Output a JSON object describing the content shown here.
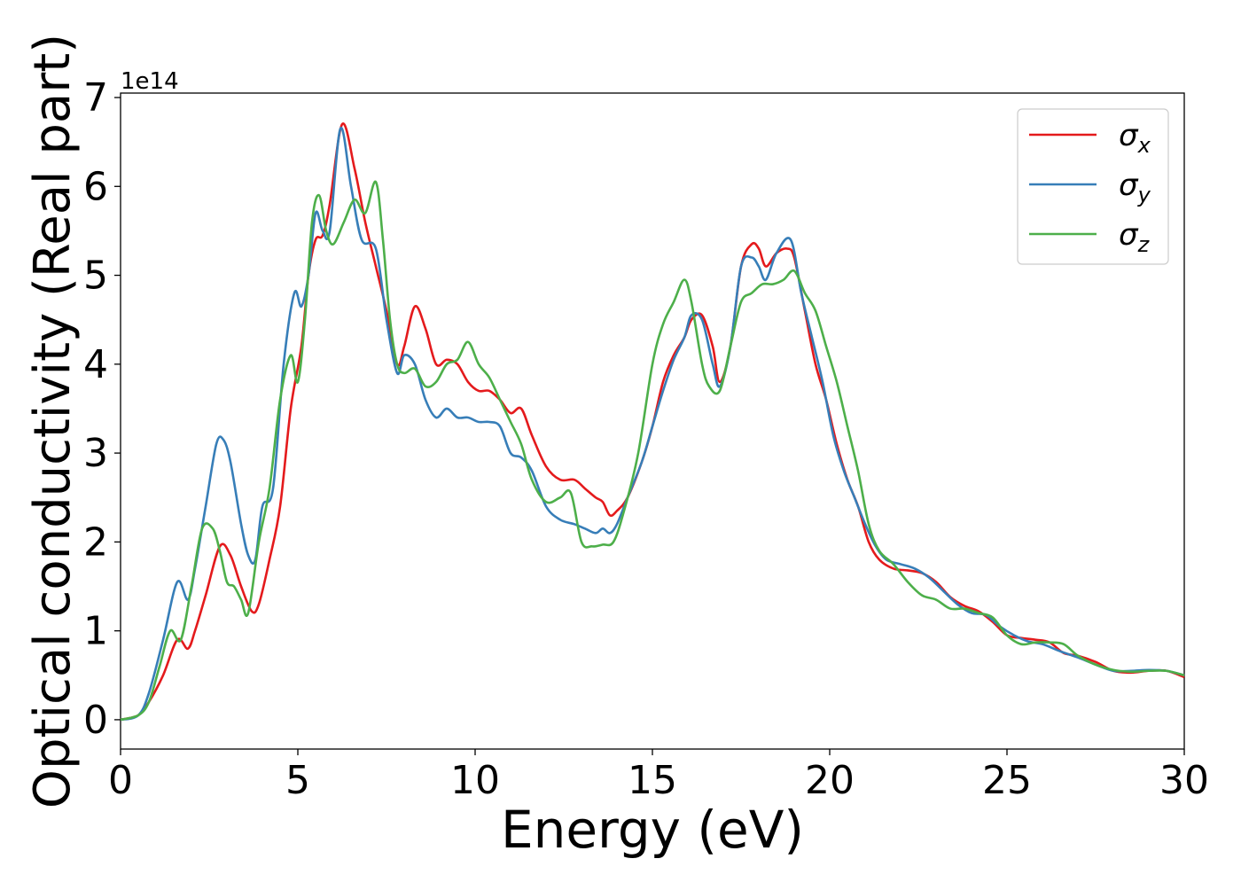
{
  "chart_data": {
    "type": "line",
    "xlabel": "Energy (eV)",
    "ylabel": "Optical conductivity (Real part)",
    "y_offset_label": "1e14",
    "y_scale_factor": 100000000000000.0,
    "xlim": [
      0,
      30
    ],
    "ylim": [
      -0.33,
      7.05
    ],
    "x_ticks": [
      0,
      5,
      10,
      15,
      20,
      25,
      30
    ],
    "x_tick_labels": [
      "0",
      "5",
      "10",
      "15",
      "20",
      "25",
      "30"
    ],
    "y_ticks": [
      0,
      1,
      2,
      3,
      4,
      5,
      6,
      7
    ],
    "y_tick_labels": [
      "0",
      "1",
      "2",
      "3",
      "4",
      "5",
      "6",
      "7"
    ],
    "grid": false,
    "legend_position": "top-right",
    "legend": [
      {
        "symbol": "σ",
        "subscript": "x",
        "color": "#e41a1c"
      },
      {
        "symbol": "σ",
        "subscript": "y",
        "color": "#377eb8"
      },
      {
        "symbol": "σ",
        "subscript": "z",
        "color": "#4daf4a"
      }
    ],
    "series": [
      {
        "color": "#e41a1c",
        "x": [
          0,
          0.5,
          0.8,
          1.2,
          1.6,
          1.9,
          2.1,
          2.4,
          2.8,
          3.1,
          3.4,
          3.7,
          3.9,
          4.2,
          4.5,
          4.8,
          5.1,
          5.3,
          5.5,
          5.7,
          5.9,
          6.25,
          6.6,
          6.9,
          7.2,
          7.5,
          7.8,
          8.0,
          8.3,
          8.6,
          8.9,
          9.2,
          9.5,
          9.8,
          10.1,
          10.4,
          10.7,
          11.0,
          11.3,
          11.6,
          12.0,
          12.4,
          12.8,
          13.1,
          13.4,
          13.6,
          13.8,
          14.0,
          14.3,
          14.7,
          15.0,
          15.3,
          15.6,
          15.9,
          16.1,
          16.4,
          16.7,
          16.9,
          17.2,
          17.5,
          17.8,
          18.0,
          18.2,
          18.5,
          18.8,
          19.0,
          19.3,
          19.6,
          19.9,
          20.2,
          20.5,
          20.8,
          21.1,
          21.4,
          21.8,
          22.2,
          22.6,
          23.0,
          23.4,
          23.8,
          24.2,
          24.6,
          25.0,
          25.4,
          25.8,
          26.2,
          26.6,
          27.0,
          27.5,
          28.0,
          28.5,
          29.0,
          29.5,
          30.0
        ],
        "y": [
          0,
          0.05,
          0.2,
          0.5,
          0.9,
          0.8,
          1.0,
          1.4,
          1.95,
          1.85,
          1.5,
          1.22,
          1.3,
          1.8,
          2.4,
          3.5,
          4.2,
          5.0,
          5.4,
          5.45,
          5.8,
          6.7,
          6.2,
          5.6,
          5.1,
          4.6,
          4.0,
          4.2,
          4.65,
          4.4,
          4.0,
          4.05,
          4.0,
          3.8,
          3.7,
          3.7,
          3.6,
          3.45,
          3.5,
          3.2,
          2.85,
          2.7,
          2.7,
          2.6,
          2.5,
          2.45,
          2.3,
          2.35,
          2.5,
          2.9,
          3.3,
          3.8,
          4.1,
          4.3,
          4.5,
          4.55,
          4.2,
          3.8,
          4.2,
          5.1,
          5.35,
          5.3,
          5.1,
          5.25,
          5.3,
          5.2,
          4.6,
          4.0,
          3.6,
          3.1,
          2.7,
          2.4,
          2.0,
          1.8,
          1.7,
          1.68,
          1.65,
          1.55,
          1.38,
          1.28,
          1.22,
          1.1,
          0.95,
          0.92,
          0.9,
          0.87,
          0.75,
          0.72,
          0.65,
          0.55,
          0.53,
          0.55,
          0.55,
          0.48
        ]
      },
      {
        "color": "#377eb8",
        "x": [
          0,
          0.5,
          0.8,
          1.2,
          1.6,
          1.9,
          2.1,
          2.4,
          2.7,
          2.9,
          3.1,
          3.4,
          3.6,
          3.8,
          4.0,
          4.3,
          4.6,
          4.9,
          5.1,
          5.3,
          5.5,
          5.7,
          5.9,
          6.2,
          6.5,
          6.8,
          7.2,
          7.5,
          7.8,
          8.0,
          8.3,
          8.6,
          8.9,
          9.2,
          9.5,
          9.8,
          10.1,
          10.4,
          10.7,
          11.0,
          11.3,
          11.6,
          12.0,
          12.4,
          12.8,
          13.1,
          13.4,
          13.6,
          13.8,
          14.0,
          14.3,
          14.7,
          15.0,
          15.3,
          15.6,
          15.9,
          16.1,
          16.4,
          16.7,
          16.9,
          17.2,
          17.5,
          17.8,
          18.0,
          18.2,
          18.5,
          18.9,
          19.2,
          19.5,
          19.8,
          20.1,
          20.4,
          20.7,
          21.0,
          21.3,
          21.6,
          22.0,
          22.4,
          22.8,
          23.2,
          23.6,
          24.0,
          24.4,
          24.8,
          25.2,
          25.6,
          26.0,
          26.5,
          27.0,
          27.5,
          28.0,
          28.5,
          29.0,
          29.5,
          30.0
        ],
        "y": [
          0,
          0.05,
          0.3,
          0.9,
          1.55,
          1.35,
          1.7,
          2.4,
          3.1,
          3.15,
          2.9,
          2.2,
          1.85,
          1.8,
          2.4,
          2.6,
          4.0,
          4.8,
          4.65,
          5.0,
          5.7,
          5.5,
          5.5,
          6.65,
          6.0,
          5.4,
          5.3,
          4.5,
          3.9,
          4.1,
          4.0,
          3.6,
          3.4,
          3.5,
          3.4,
          3.4,
          3.35,
          3.35,
          3.3,
          3.0,
          2.95,
          2.8,
          2.4,
          2.25,
          2.2,
          2.15,
          2.1,
          2.15,
          2.1,
          2.2,
          2.5,
          2.9,
          3.3,
          3.7,
          4.05,
          4.3,
          4.55,
          4.5,
          4.0,
          3.75,
          4.2,
          5.1,
          5.2,
          5.1,
          4.95,
          5.25,
          5.4,
          4.8,
          4.3,
          3.8,
          3.2,
          2.8,
          2.5,
          2.2,
          1.95,
          1.8,
          1.75,
          1.7,
          1.6,
          1.45,
          1.3,
          1.2,
          1.18,
          1.05,
          0.95,
          0.88,
          0.85,
          0.77,
          0.7,
          0.62,
          0.55,
          0.55,
          0.56,
          0.55,
          0.5
        ]
      },
      {
        "color": "#4daf4a",
        "x": [
          0,
          0.5,
          0.8,
          1.1,
          1.4,
          1.7,
          2.0,
          2.3,
          2.6,
          2.8,
          3.0,
          3.2,
          3.4,
          3.6,
          3.9,
          4.2,
          4.5,
          4.8,
          5.0,
          5.2,
          5.4,
          5.6,
          5.8,
          6.0,
          6.3,
          6.6,
          6.9,
          7.2,
          7.4,
          7.6,
          7.8,
          8.0,
          8.3,
          8.6,
          8.9,
          9.2,
          9.5,
          9.8,
          10.1,
          10.4,
          10.7,
          11.0,
          11.3,
          11.6,
          12.0,
          12.4,
          12.7,
          13.0,
          13.3,
          13.6,
          13.9,
          14.2,
          14.6,
          15.0,
          15.3,
          15.6,
          15.9,
          16.1,
          16.4,
          16.6,
          16.9,
          17.2,
          17.5,
          17.8,
          18.1,
          18.4,
          18.7,
          19.0,
          19.3,
          19.6,
          19.9,
          20.2,
          20.5,
          20.8,
          21.1,
          21.4,
          21.8,
          22.2,
          22.6,
          23.0,
          23.4,
          23.8,
          24.2,
          24.6,
          25.0,
          25.4,
          25.8,
          26.2,
          26.6,
          27.0,
          27.5,
          28.0,
          28.5,
          29.0,
          29.5,
          30.0
        ],
        "y": [
          0,
          0.05,
          0.2,
          0.6,
          1.0,
          0.9,
          1.5,
          2.15,
          2.15,
          1.9,
          1.55,
          1.5,
          1.35,
          1.2,
          2.0,
          2.6,
          3.6,
          4.1,
          3.8,
          4.5,
          5.6,
          5.9,
          5.5,
          5.35,
          5.6,
          5.85,
          5.7,
          6.05,
          5.4,
          4.5,
          4.0,
          3.9,
          3.95,
          3.75,
          3.8,
          4.0,
          4.05,
          4.25,
          4.0,
          3.85,
          3.6,
          3.35,
          3.1,
          2.7,
          2.45,
          2.5,
          2.55,
          2.0,
          1.95,
          1.97,
          2.0,
          2.35,
          3.0,
          4.0,
          4.45,
          4.7,
          4.95,
          4.7,
          4.0,
          3.75,
          3.7,
          4.2,
          4.7,
          4.8,
          4.9,
          4.9,
          4.95,
          5.05,
          4.8,
          4.6,
          4.2,
          3.8,
          3.3,
          2.8,
          2.2,
          1.9,
          1.75,
          1.55,
          1.4,
          1.35,
          1.25,
          1.25,
          1.2,
          1.15,
          0.95,
          0.85,
          0.87,
          0.87,
          0.85,
          0.72,
          0.62,
          0.56,
          0.54,
          0.55,
          0.55,
          0.5
        ]
      }
    ]
  }
}
